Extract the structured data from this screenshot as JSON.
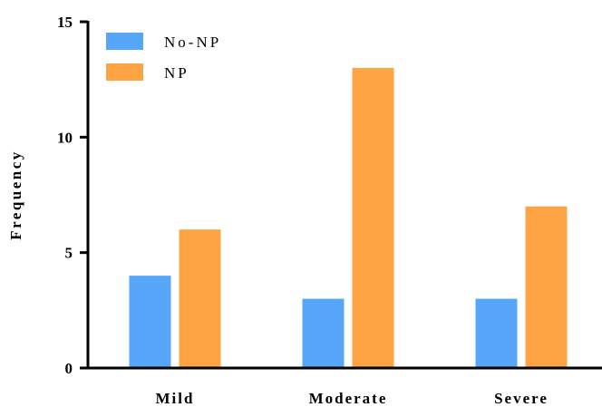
{
  "chart_data": {
    "type": "bar",
    "categories": [
      "Mild",
      "Moderate",
      "Severe"
    ],
    "series": [
      {
        "name": "No-NP",
        "values": [
          4,
          3,
          3
        ],
        "color": "#56A6FA"
      },
      {
        "name": "NP",
        "values": [
          6,
          13,
          7
        ],
        "color": "#FFA445"
      }
    ],
    "ylabel": "Frequency",
    "xlabel": "",
    "ylim": [
      0,
      15
    ],
    "yticks": [
      0,
      5,
      10,
      15
    ],
    "grid": false,
    "legend": "top-left"
  }
}
